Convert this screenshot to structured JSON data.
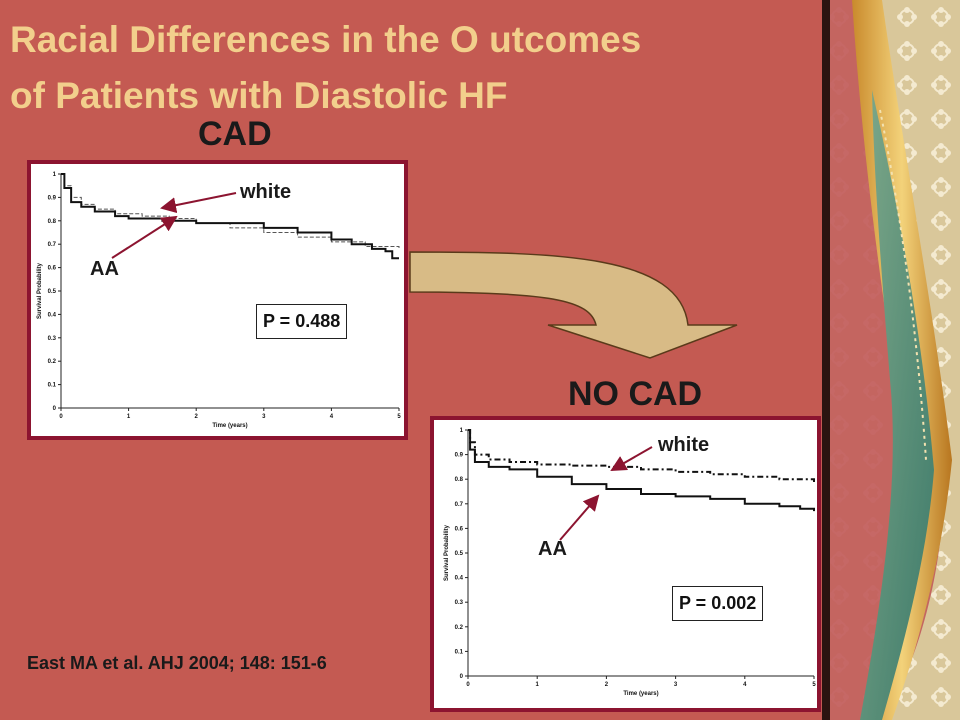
{
  "slide": {
    "title_line1": "Racial Differences in the O utcomes",
    "title_line2": "of Patients with Diastolic HF",
    "citation": "East MA et al. AHJ 2004; 148: 151-6",
    "colors": {
      "background": "#c45a52",
      "title": "#f2cf8c",
      "frame": "#8c1430",
      "arrow": "#d8bb86"
    }
  },
  "chart_data": [
    {
      "type": "line",
      "heading": "CAD",
      "xlabel": "Time (years)",
      "ylabel": "Survival Probability",
      "xlim": [
        0,
        5
      ],
      "ylim": [
        0,
        1
      ],
      "x_ticks": [
        "0",
        "1",
        "2",
        "3",
        "4",
        "5"
      ],
      "y_ticks": [
        "0",
        "0.1",
        "0.2",
        "0.3",
        "0.4",
        "0.5",
        "0.6",
        "0.7",
        "0.8",
        "0.9",
        "1"
      ],
      "p_value": "P = 0.488",
      "series": [
        {
          "name": "white",
          "style": "dashed",
          "x": [
            0,
            0.05,
            0.15,
            0.3,
            0.5,
            0.8,
            1.2,
            1.6,
            2.0,
            2.5,
            3.0,
            3.5,
            4.0,
            4.5,
            5.0
          ],
          "y": [
            1.0,
            0.95,
            0.9,
            0.87,
            0.85,
            0.83,
            0.82,
            0.81,
            0.79,
            0.77,
            0.75,
            0.73,
            0.71,
            0.69,
            0.68
          ]
        },
        {
          "name": "AA",
          "style": "solid",
          "x": [
            0,
            0.05,
            0.15,
            0.3,
            0.5,
            0.8,
            1.0,
            1.5,
            2.0,
            2.5,
            3.0,
            3.5,
            4.0,
            4.3,
            4.6,
            4.8,
            4.9,
            5.0
          ],
          "y": [
            1.0,
            0.94,
            0.88,
            0.86,
            0.84,
            0.82,
            0.81,
            0.8,
            0.79,
            0.79,
            0.77,
            0.75,
            0.72,
            0.7,
            0.68,
            0.67,
            0.64,
            0.64
          ]
        }
      ]
    },
    {
      "type": "line",
      "heading": "NO CAD",
      "xlabel": "Time (years)",
      "ylabel": "Survival Probability",
      "xlim": [
        0,
        5
      ],
      "ylim": [
        0,
        1
      ],
      "x_ticks": [
        "0",
        "1",
        "2",
        "3",
        "4",
        "5"
      ],
      "y_ticks": [
        "0",
        "0.1",
        "0.2",
        "0.3",
        "0.4",
        "0.5",
        "0.6",
        "0.7",
        "0.8",
        "0.9",
        "1"
      ],
      "p_value": "P = 0.002",
      "series": [
        {
          "name": "white",
          "style": "dashdot",
          "x": [
            0,
            0.03,
            0.1,
            0.3,
            0.6,
            1.0,
            1.5,
            2.0,
            2.5,
            3.0,
            3.5,
            4.0,
            4.5,
            5.0
          ],
          "y": [
            1.0,
            0.95,
            0.9,
            0.88,
            0.87,
            0.86,
            0.855,
            0.85,
            0.84,
            0.83,
            0.82,
            0.81,
            0.8,
            0.78
          ]
        },
        {
          "name": "AA",
          "style": "solid",
          "x": [
            0,
            0.03,
            0.1,
            0.3,
            0.6,
            1.0,
            1.5,
            2.0,
            2.5,
            3.0,
            3.5,
            4.0,
            4.5,
            4.8,
            5.0
          ],
          "y": [
            1.0,
            0.92,
            0.87,
            0.85,
            0.84,
            0.81,
            0.78,
            0.76,
            0.74,
            0.73,
            0.72,
            0.7,
            0.69,
            0.68,
            0.67
          ]
        }
      ]
    }
  ]
}
